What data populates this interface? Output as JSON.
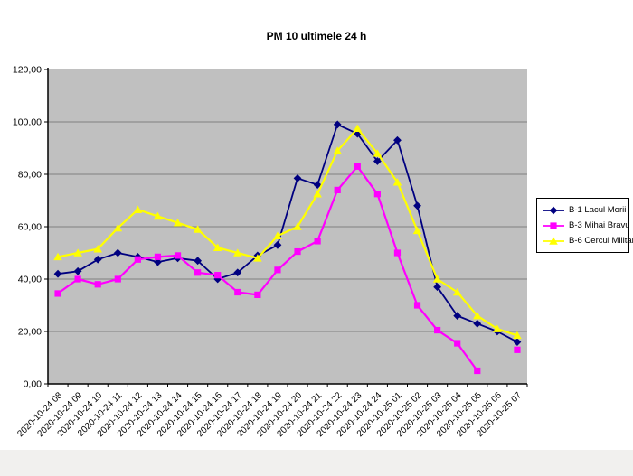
{
  "title": "PM 10 ultimele 24 h",
  "chart_data": {
    "type": "line",
    "title": "PM 10 ultimele 24 h",
    "categories": [
      "2020-10-24 08",
      "2020-10-24 09",
      "2020-10-24 10",
      "2020-10-24 11",
      "2020-10-24 12",
      "2020-10-24 13",
      "2020-10-24 14",
      "2020-10-24 15",
      "2020-10-24 16",
      "2020-10-24 17",
      "2020-10-24 18",
      "2020-10-24 19",
      "2020-10-24 20",
      "2020-10-24 21",
      "2020-10-24 22",
      "2020-10-24 23",
      "2020-10-24 24",
      "2020-10-25 01",
      "2020-10-25 02",
      "2020-10-25 03",
      "2020-10-25 04",
      "2020-10-25 05",
      "2020-10-25 06",
      "2020-10-25 07"
    ],
    "series": [
      {
        "name": "B-1 Lacul Morii",
        "color": "#000080",
        "marker": "diamond",
        "values": [
          42,
          43,
          47.5,
          50,
          48.5,
          46.5,
          48,
          47,
          40,
          42.5,
          49,
          53,
          78.5,
          76,
          99,
          95.5,
          85,
          93,
          68,
          37,
          26,
          23,
          20,
          16
        ]
      },
      {
        "name": "B-3 Mihai Bravu",
        "color": "#FF00FF",
        "marker": "square",
        "values": [
          34.5,
          40,
          38,
          40,
          47.5,
          48.5,
          49,
          42.5,
          41.5,
          35,
          34,
          43.5,
          50.5,
          54.5,
          74,
          83,
          72.5,
          50,
          30,
          20.5,
          15.5,
          5,
          null,
          13
        ]
      },
      {
        "name": "B-6 Cercul Militar",
        "color": "#FFFF00",
        "marker": "triangle",
        "values": [
          48.5,
          50,
          51.5,
          59.5,
          66.5,
          64,
          61.5,
          59,
          52,
          50,
          48,
          56.5,
          60,
          72.5,
          89,
          97.5,
          88,
          77,
          58.5,
          40,
          35,
          26,
          21,
          18.5
        ]
      }
    ],
    "ylim": [
      0,
      120
    ],
    "ytick_step": 20,
    "ytick_labels": [
      "0,00",
      "20,00",
      "40,00",
      "60,00",
      "80,00",
      "100,00",
      "120,00"
    ],
    "grid": true,
    "legend_position": "right",
    "plot_bg": "#C0C0C0",
    "grid_color": "#808080",
    "axis_color": "#000000"
  }
}
